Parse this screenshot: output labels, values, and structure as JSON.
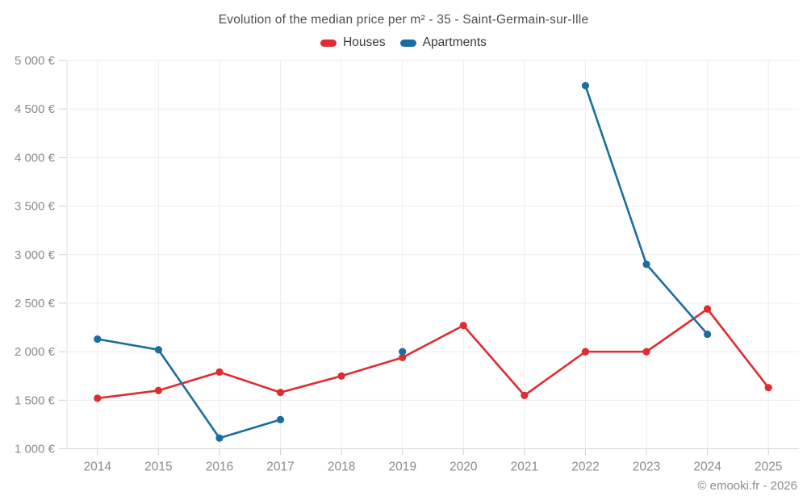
{
  "footer": {
    "credit": "© emooki.fr - 2026"
  },
  "chart_data": {
    "type": "line",
    "title": "Evolution of the median price per m² - 35 - Saint-Germain-sur-Ille",
    "x": [
      "2014",
      "2015",
      "2016",
      "2017",
      "2018",
      "2019",
      "2020",
      "2021",
      "2022",
      "2023",
      "2024",
      "2025"
    ],
    "series": [
      {
        "name": "Houses",
        "color": "#e02b30",
        "values": [
          1520,
          1600,
          1790,
          1580,
          1750,
          1940,
          2270,
          1550,
          2000,
          2000,
          2440,
          1630
        ]
      },
      {
        "name": "Apartments",
        "color": "#1b6d9f",
        "values": [
          2130,
          2020,
          1110,
          1300,
          null,
          2000,
          null,
          null,
          4740,
          2900,
          2180,
          null
        ]
      }
    ],
    "ylim": [
      1000,
      5000
    ],
    "yticks": [
      {
        "value": 1000,
        "label": "1 000 €"
      },
      {
        "value": 1500,
        "label": "1 500 €"
      },
      {
        "value": 2000,
        "label": "2 000 €"
      },
      {
        "value": 2500,
        "label": "2 500 €"
      },
      {
        "value": 3000,
        "label": "3 000 €"
      },
      {
        "value": 3500,
        "label": "3 500 €"
      },
      {
        "value": 4000,
        "label": "4 000 €"
      },
      {
        "value": 4500,
        "label": "4 500 €"
      },
      {
        "value": 5000,
        "label": "5 000 €"
      }
    ],
    "grid": true,
    "legend_position": "top"
  }
}
